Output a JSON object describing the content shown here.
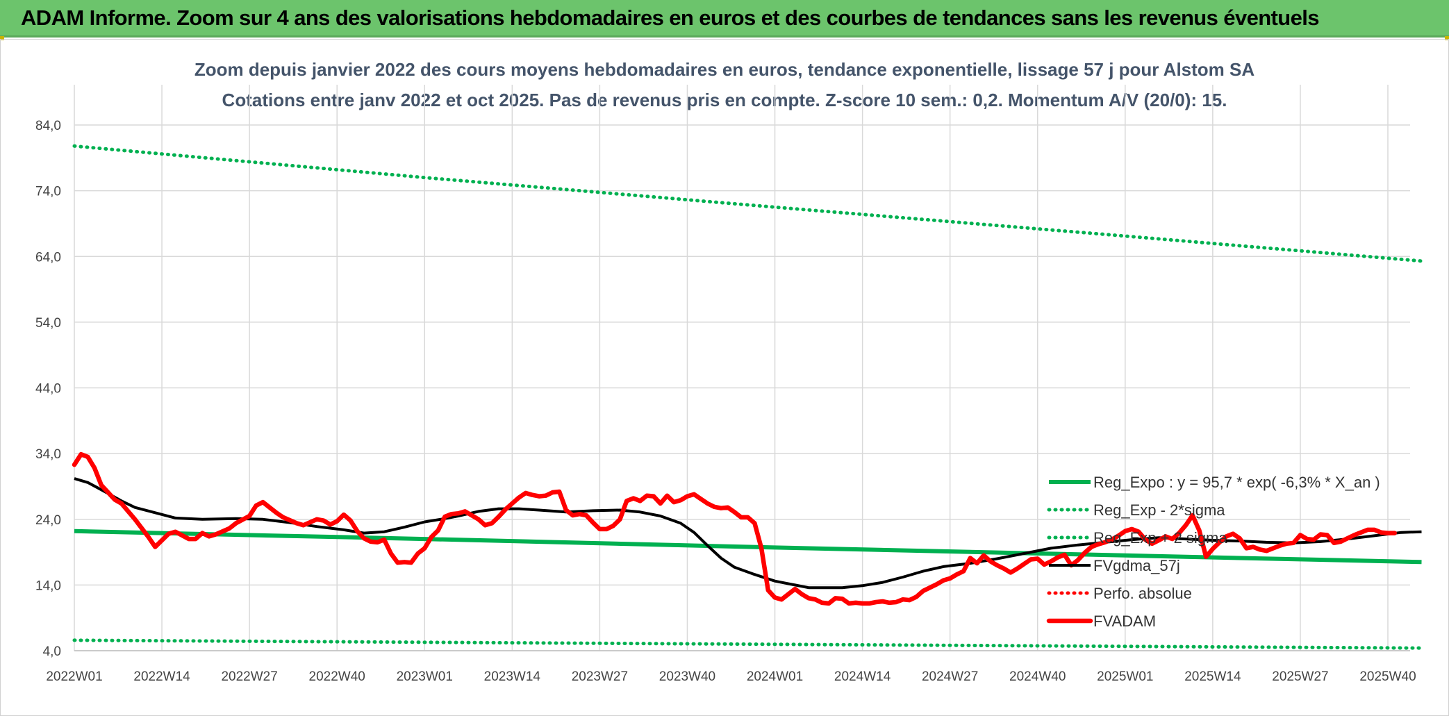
{
  "header": {
    "title": "ADAM Informe. Zoom sur 4 ans des valorisations hebdomadaires en euros et des courbes de tendances sans les revenus éventuels"
  },
  "colors": {
    "header_bg": "#6cc46c",
    "green": "#00b050",
    "red": "#ff0000",
    "black": "#000000",
    "grid": "#d9d9d9"
  },
  "chart_data": {
    "type": "line",
    "title": "Zoom depuis janvier 2022 des cours moyens hebdomadaires en euros, tendance exponentielle, lissage 57 j pour Alstom SA",
    "subtitle": "Cotations entre janv 2022 et oct 2025. Pas de revenus pris en compte. Z-score 10 sem.: 0,2. Momentum A/V (20/0): 15.",
    "ylim": [
      4,
      88
    ],
    "ytick_values": [
      4,
      14,
      24,
      34,
      44,
      54,
      64,
      74,
      84
    ],
    "ytick_labels": [
      "4,0",
      "14,0",
      "24,0",
      "34,0",
      "44,0",
      "54,0",
      "64,0",
      "74,0",
      "84,0"
    ],
    "x_week_range": [
      1,
      196
    ],
    "x_ticks": [
      {
        "week": 1,
        "label": "2022W01"
      },
      {
        "week": 14,
        "label": "2022W14"
      },
      {
        "week": 27,
        "label": "2022W27"
      },
      {
        "week": 40,
        "label": "2022W40"
      },
      {
        "week": 53,
        "label": "2023W01"
      },
      {
        "week": 66,
        "label": "2023W14"
      },
      {
        "week": 79,
        "label": "2023W27"
      },
      {
        "week": 92,
        "label": "2023W40"
      },
      {
        "week": 105,
        "label": "2024W01"
      },
      {
        "week": 118,
        "label": "2024W14"
      },
      {
        "week": 131,
        "label": "2024W27"
      },
      {
        "week": 144,
        "label": "2024W40"
      },
      {
        "week": 157,
        "label": "2025W01"
      },
      {
        "week": 170,
        "label": "2025W14"
      },
      {
        "week": 183,
        "label": "2025W27"
      },
      {
        "week": 196,
        "label": "2025W40"
      }
    ],
    "grid": true,
    "legend_position": "bottom-right",
    "series": [
      {
        "name": "Reg_Expo : y = 95,7 * exp( -6,3% *  X_an )",
        "color": "#00b050",
        "style": "solid",
        "points": [
          [
            1,
            22.2
          ],
          [
            53,
            21.0
          ],
          [
            105,
            19.7
          ],
          [
            157,
            18.5
          ],
          [
            201,
            17.5
          ]
        ]
      },
      {
        "name": "Reg_Exp - 2*sigma",
        "color": "#00b050",
        "style": "dotted",
        "points": [
          [
            1,
            5.6
          ],
          [
            201,
            4.4
          ]
        ]
      },
      {
        "name": "Reg_Exp + 2 sigma",
        "color": "#00b050",
        "style": "dotted",
        "points": [
          [
            1,
            80.8
          ],
          [
            53,
            76.0
          ],
          [
            105,
            71.5
          ],
          [
            157,
            67.1
          ],
          [
            201,
            63.3
          ]
        ]
      },
      {
        "name": "FVgdma_57j",
        "color": "#000000",
        "style": "solid",
        "points": [
          [
            1,
            30.2
          ],
          [
            3,
            29.6
          ],
          [
            5,
            28.5
          ],
          [
            8,
            26.8
          ],
          [
            10,
            25.8
          ],
          [
            13,
            25.0
          ],
          [
            16,
            24.2
          ],
          [
            20,
            24.0
          ],
          [
            25,
            24.1
          ],
          [
            29,
            24.0
          ],
          [
            33,
            23.5
          ],
          [
            37,
            22.9
          ],
          [
            41,
            22.4
          ],
          [
            44,
            21.9
          ],
          [
            47,
            22.1
          ],
          [
            50,
            22.8
          ],
          [
            53,
            23.6
          ],
          [
            56,
            24.1
          ],
          [
            58,
            24.5
          ],
          [
            61,
            25.2
          ],
          [
            64,
            25.6
          ],
          [
            67,
            25.6
          ],
          [
            70,
            25.4
          ],
          [
            74,
            25.1
          ],
          [
            78,
            25.3
          ],
          [
            82,
            25.4
          ],
          [
            85,
            25.1
          ],
          [
            88,
            24.5
          ],
          [
            91,
            23.4
          ],
          [
            93,
            22.0
          ],
          [
            95,
            20.0
          ],
          [
            97,
            18.1
          ],
          [
            99,
            16.7
          ],
          [
            102,
            15.6
          ],
          [
            105,
            14.6
          ],
          [
            108,
            14.0
          ],
          [
            110,
            13.6
          ],
          [
            115,
            13.6
          ],
          [
            118,
            13.9
          ],
          [
            121,
            14.4
          ],
          [
            124,
            15.2
          ],
          [
            127,
            16.1
          ],
          [
            130,
            16.8
          ],
          [
            134,
            17.3
          ],
          [
            138,
            18.0
          ],
          [
            142,
            18.8
          ],
          [
            146,
            19.6
          ],
          [
            150,
            20.1
          ],
          [
            154,
            20.5
          ],
          [
            158,
            20.9
          ],
          [
            162,
            21.2
          ],
          [
            166,
            21.0
          ],
          [
            170,
            20.8
          ],
          [
            174,
            20.7
          ],
          [
            178,
            20.5
          ],
          [
            182,
            20.4
          ],
          [
            186,
            20.6
          ],
          [
            190,
            21.0
          ],
          [
            194,
            21.5
          ],
          [
            198,
            22.0
          ],
          [
            201,
            22.1
          ]
        ]
      },
      {
        "name": "Perfo. absolue",
        "color": "#ff0000",
        "style": "dotted",
        "points": []
      },
      {
        "name": "FVADAM",
        "color": "#ff0000",
        "style": "solid",
        "points": [
          [
            1,
            32.3
          ],
          [
            2,
            33.9
          ],
          [
            3,
            33.5
          ],
          [
            4,
            31.8
          ],
          [
            5,
            29.2
          ],
          [
            7,
            27.0
          ],
          [
            8,
            26.4
          ],
          [
            10,
            24.0
          ],
          [
            12,
            21.3
          ],
          [
            13,
            19.8
          ],
          [
            15,
            21.8
          ],
          [
            16,
            22.1
          ],
          [
            18,
            21.0
          ],
          [
            19,
            21.0
          ],
          [
            20,
            21.9
          ],
          [
            21,
            21.4
          ],
          [
            22,
            21.7
          ],
          [
            24,
            22.6
          ],
          [
            25,
            23.4
          ],
          [
            27,
            24.5
          ],
          [
            28,
            26.1
          ],
          [
            29,
            26.6
          ],
          [
            31,
            25.0
          ],
          [
            32,
            24.3
          ],
          [
            34,
            23.4
          ],
          [
            35,
            23.1
          ],
          [
            37,
            24.0
          ],
          [
            38,
            23.8
          ],
          [
            39,
            23.2
          ],
          [
            40,
            23.7
          ],
          [
            41,
            24.7
          ],
          [
            42,
            23.8
          ],
          [
            43,
            22.2
          ],
          [
            44,
            21.1
          ],
          [
            45,
            20.6
          ],
          [
            46,
            20.5
          ],
          [
            47,
            20.9
          ],
          [
            48,
            18.8
          ],
          [
            49,
            17.4
          ],
          [
            50,
            17.5
          ],
          [
            51,
            17.4
          ],
          [
            52,
            18.8
          ],
          [
            53,
            19.6
          ],
          [
            54,
            21.3
          ],
          [
            55,
            22.3
          ],
          [
            56,
            24.4
          ],
          [
            57,
            24.8
          ],
          [
            58,
            24.9
          ],
          [
            59,
            25.2
          ],
          [
            60,
            24.6
          ],
          [
            61,
            24.0
          ],
          [
            62,
            23.1
          ],
          [
            63,
            23.4
          ],
          [
            64,
            24.4
          ],
          [
            65,
            25.5
          ],
          [
            66,
            26.4
          ],
          [
            67,
            27.3
          ],
          [
            68,
            28.0
          ],
          [
            69,
            27.7
          ],
          [
            70,
            27.5
          ],
          [
            71,
            27.6
          ],
          [
            72,
            28.1
          ],
          [
            73,
            28.2
          ],
          [
            74,
            25.4
          ],
          [
            75,
            24.6
          ],
          [
            76,
            24.8
          ],
          [
            77,
            24.6
          ],
          [
            78,
            23.5
          ],
          [
            79,
            22.5
          ],
          [
            80,
            22.5
          ],
          [
            81,
            23.0
          ],
          [
            82,
            24.0
          ],
          [
            83,
            26.8
          ],
          [
            84,
            27.2
          ],
          [
            85,
            26.8
          ],
          [
            86,
            27.6
          ],
          [
            87,
            27.5
          ],
          [
            88,
            26.4
          ],
          [
            89,
            27.6
          ],
          [
            90,
            26.6
          ],
          [
            91,
            26.9
          ],
          [
            92,
            27.5
          ],
          [
            93,
            27.8
          ],
          [
            94,
            27.1
          ],
          [
            95,
            26.4
          ],
          [
            96,
            25.9
          ],
          [
            97,
            25.7
          ],
          [
            98,
            25.8
          ],
          [
            99,
            25.1
          ],
          [
            100,
            24.3
          ],
          [
            101,
            24.3
          ],
          [
            102,
            23.4
          ],
          [
            103,
            19.6
          ],
          [
            104,
            13.2
          ],
          [
            105,
            12.1
          ],
          [
            106,
            11.8
          ],
          [
            107,
            12.6
          ],
          [
            108,
            13.4
          ],
          [
            109,
            12.6
          ],
          [
            110,
            12.0
          ],
          [
            111,
            11.8
          ],
          [
            112,
            11.3
          ],
          [
            113,
            11.2
          ],
          [
            114,
            12.0
          ],
          [
            115,
            11.9
          ],
          [
            116,
            11.2
          ],
          [
            117,
            11.3
          ],
          [
            118,
            11.2
          ],
          [
            119,
            11.2
          ],
          [
            120,
            11.4
          ],
          [
            121,
            11.5
          ],
          [
            122,
            11.3
          ],
          [
            123,
            11.4
          ],
          [
            124,
            11.8
          ],
          [
            125,
            11.7
          ],
          [
            126,
            12.2
          ],
          [
            127,
            13.1
          ],
          [
            128,
            13.6
          ],
          [
            129,
            14.1
          ],
          [
            130,
            14.7
          ],
          [
            131,
            15.0
          ],
          [
            132,
            15.6
          ],
          [
            133,
            16.1
          ],
          [
            134,
            18.1
          ],
          [
            135,
            17.3
          ],
          [
            136,
            18.5
          ],
          [
            137,
            17.6
          ],
          [
            138,
            17.0
          ],
          [
            139,
            16.5
          ],
          [
            140,
            15.9
          ],
          [
            141,
            16.5
          ],
          [
            142,
            17.2
          ],
          [
            143,
            17.9
          ],
          [
            144,
            18.0
          ],
          [
            145,
            17.1
          ],
          [
            146,
            17.6
          ],
          [
            147,
            18.2
          ],
          [
            148,
            18.6
          ],
          [
            149,
            17.0
          ],
          [
            150,
            17.8
          ],
          [
            151,
            18.9
          ],
          [
            152,
            19.8
          ],
          [
            153,
            20.2
          ],
          [
            154,
            20.5
          ],
          [
            155,
            20.9
          ],
          [
            156,
            21.5
          ],
          [
            157,
            22.2
          ],
          [
            158,
            22.5
          ],
          [
            159,
            22.1
          ],
          [
            160,
            20.9
          ],
          [
            161,
            20.3
          ],
          [
            162,
            20.8
          ],
          [
            163,
            21.4
          ],
          [
            164,
            21.0
          ],
          [
            165,
            21.9
          ],
          [
            166,
            23.1
          ],
          [
            167,
            24.6
          ],
          [
            168,
            22.3
          ],
          [
            169,
            18.3
          ],
          [
            170,
            19.5
          ],
          [
            171,
            20.5
          ],
          [
            172,
            21.4
          ],
          [
            173,
            21.8
          ],
          [
            174,
            21.1
          ],
          [
            175,
            19.6
          ],
          [
            176,
            19.8
          ],
          [
            177,
            19.4
          ],
          [
            178,
            19.2
          ],
          [
            179,
            19.6
          ],
          [
            180,
            20.0
          ],
          [
            181,
            20.3
          ],
          [
            182,
            20.4
          ],
          [
            183,
            21.6
          ],
          [
            184,
            21.0
          ],
          [
            185,
            20.9
          ],
          [
            186,
            21.7
          ],
          [
            187,
            21.6
          ],
          [
            188,
            20.4
          ],
          [
            189,
            20.6
          ],
          [
            190,
            21.1
          ],
          [
            191,
            21.6
          ],
          [
            192,
            22.0
          ],
          [
            193,
            22.4
          ],
          [
            194,
            22.4
          ],
          [
            195,
            22.0
          ],
          [
            196,
            21.9
          ],
          [
            197,
            21.9
          ]
        ]
      }
    ]
  }
}
